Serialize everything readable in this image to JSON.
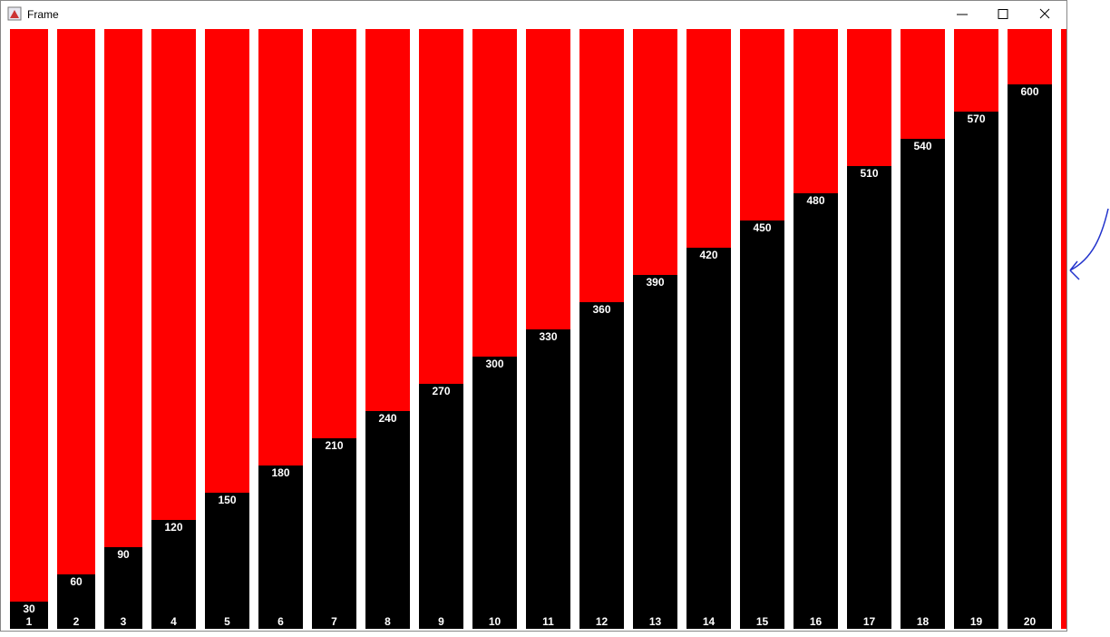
{
  "window": {
    "title": "Frame"
  },
  "chart_data": {
    "type": "bar",
    "categories": [
      "1",
      "2",
      "3",
      "4",
      "5",
      "6",
      "7",
      "8",
      "9",
      "10",
      "11",
      "12",
      "13",
      "14",
      "15",
      "16",
      "17",
      "18",
      "19",
      "20"
    ],
    "values": [
      30,
      60,
      90,
      120,
      150,
      180,
      210,
      240,
      270,
      300,
      330,
      360,
      390,
      420,
      450,
      480,
      510,
      540,
      570,
      600
    ],
    "color": "#000000",
    "background_color": "#ff0000"
  }
}
